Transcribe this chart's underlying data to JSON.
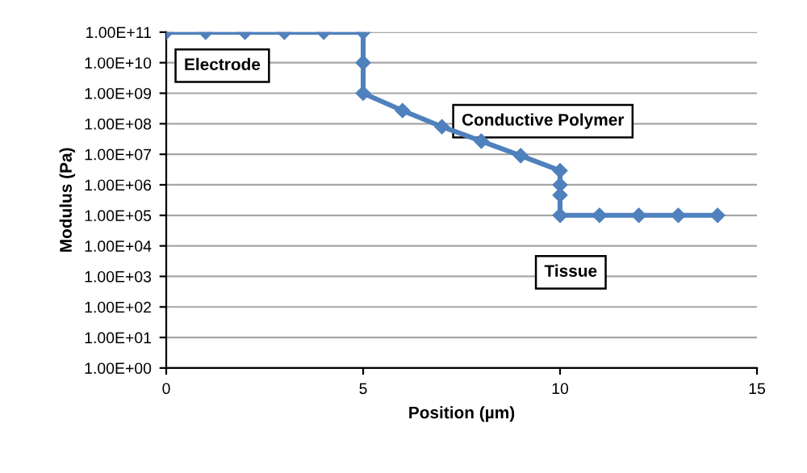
{
  "chart_data": {
    "type": "line",
    "xlabel": "Position (µm)",
    "ylabel": "Modulus (Pa)",
    "series": [
      {
        "color": "#4f81bd",
        "x": [
          0,
          1,
          2,
          3,
          4,
          5,
          5,
          5,
          6,
          7,
          8,
          9,
          10,
          10,
          10,
          10,
          11,
          12,
          13,
          14
        ],
        "values": [
          100000000000.0,
          100000000000.0,
          100000000000.0,
          100000000000.0,
          100000000000.0,
          100000000000.0,
          10000000000.0,
          1000000000.0,
          270000000.0,
          80000000.0,
          27000000.0,
          9000000.0,
          2900000.0,
          1000000.0,
          460000.0,
          100000.0,
          100000.0,
          100000.0,
          100000.0,
          100000.0
        ]
      }
    ],
    "marker": "diamond",
    "line_style": "solid",
    "log": "y",
    "grid": "y",
    "xlim": [
      0,
      15
    ],
    "xticks": [
      0,
      5,
      10,
      15
    ],
    "ylim": [
      1,
      100000000000.0
    ],
    "yticks": [
      {
        "value": 1,
        "label": "1.00E+00"
      },
      {
        "value": 10,
        "label": "1.00E+01"
      },
      {
        "value": 100,
        "label": "1.00E+02"
      },
      {
        "value": 1000,
        "label": "1.00E+03"
      },
      {
        "value": 10000,
        "label": "1.00E+04"
      },
      {
        "value": 100000,
        "label": "1.00E+05"
      },
      {
        "value": 1000000,
        "label": "1.00E+06"
      },
      {
        "value": 10000000,
        "label": "1.00E+07"
      },
      {
        "value": 100000000,
        "label": "1.00E+08"
      },
      {
        "value": 1000000000,
        "label": "1.00E+09"
      },
      {
        "value": 10000000000,
        "label": "1.00E+10"
      },
      {
        "value": 100000000000,
        "label": "1.00E+11"
      }
    ],
    "annotations": [
      "Electrode",
      "Conductive Polymer",
      "Tissue"
    ]
  }
}
